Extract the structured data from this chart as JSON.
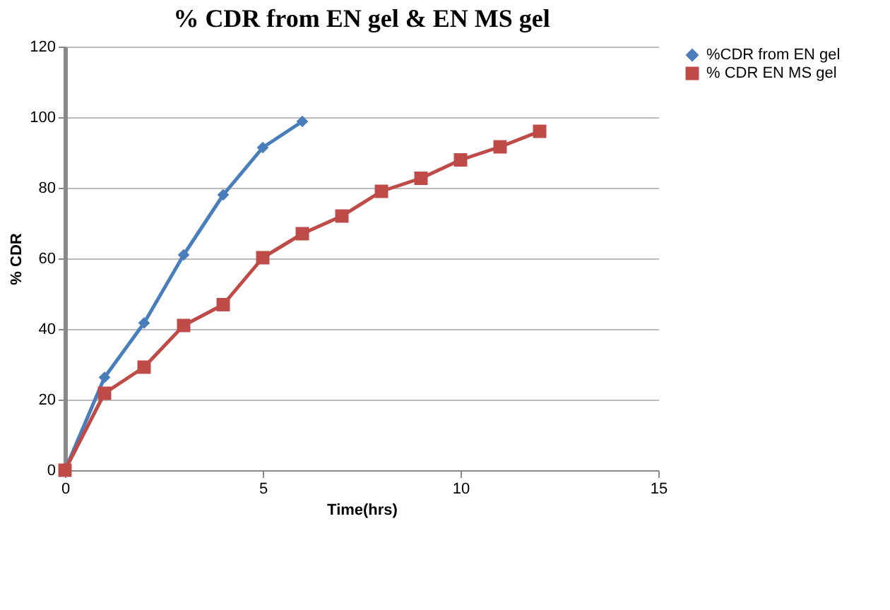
{
  "chart_data": {
    "type": "line",
    "title": "% CDR from EN gel & EN MS gel",
    "xlabel": "Time(hrs)",
    "ylabel": "% CDR",
    "xlim": [
      0,
      15
    ],
    "xticks": [
      0,
      5,
      10,
      15
    ],
    "ylim": [
      0,
      120
    ],
    "yticks": [
      0,
      20,
      40,
      60,
      80,
      100,
      120
    ],
    "grid": "y",
    "legend": "right",
    "series": [
      {
        "name": "%CDR from EN gel",
        "color": "#4a7ebb",
        "marker": "diamond",
        "x": [
          0,
          1,
          2,
          3,
          4,
          5,
          6
        ],
        "values": [
          0,
          26.3,
          41.7,
          61,
          78,
          91.4,
          98.8
        ]
      },
      {
        "name": "% CDR  EN MS gel",
        "color": "#be4b48",
        "marker": "square",
        "x": [
          0,
          1,
          2,
          3,
          4,
          5,
          6,
          7,
          8,
          9,
          10,
          11,
          12
        ],
        "values": [
          0,
          21.8,
          29.2,
          41,
          46.9,
          60.2,
          67,
          72,
          79,
          82.7,
          87.9,
          91.6,
          96
        ]
      }
    ]
  }
}
